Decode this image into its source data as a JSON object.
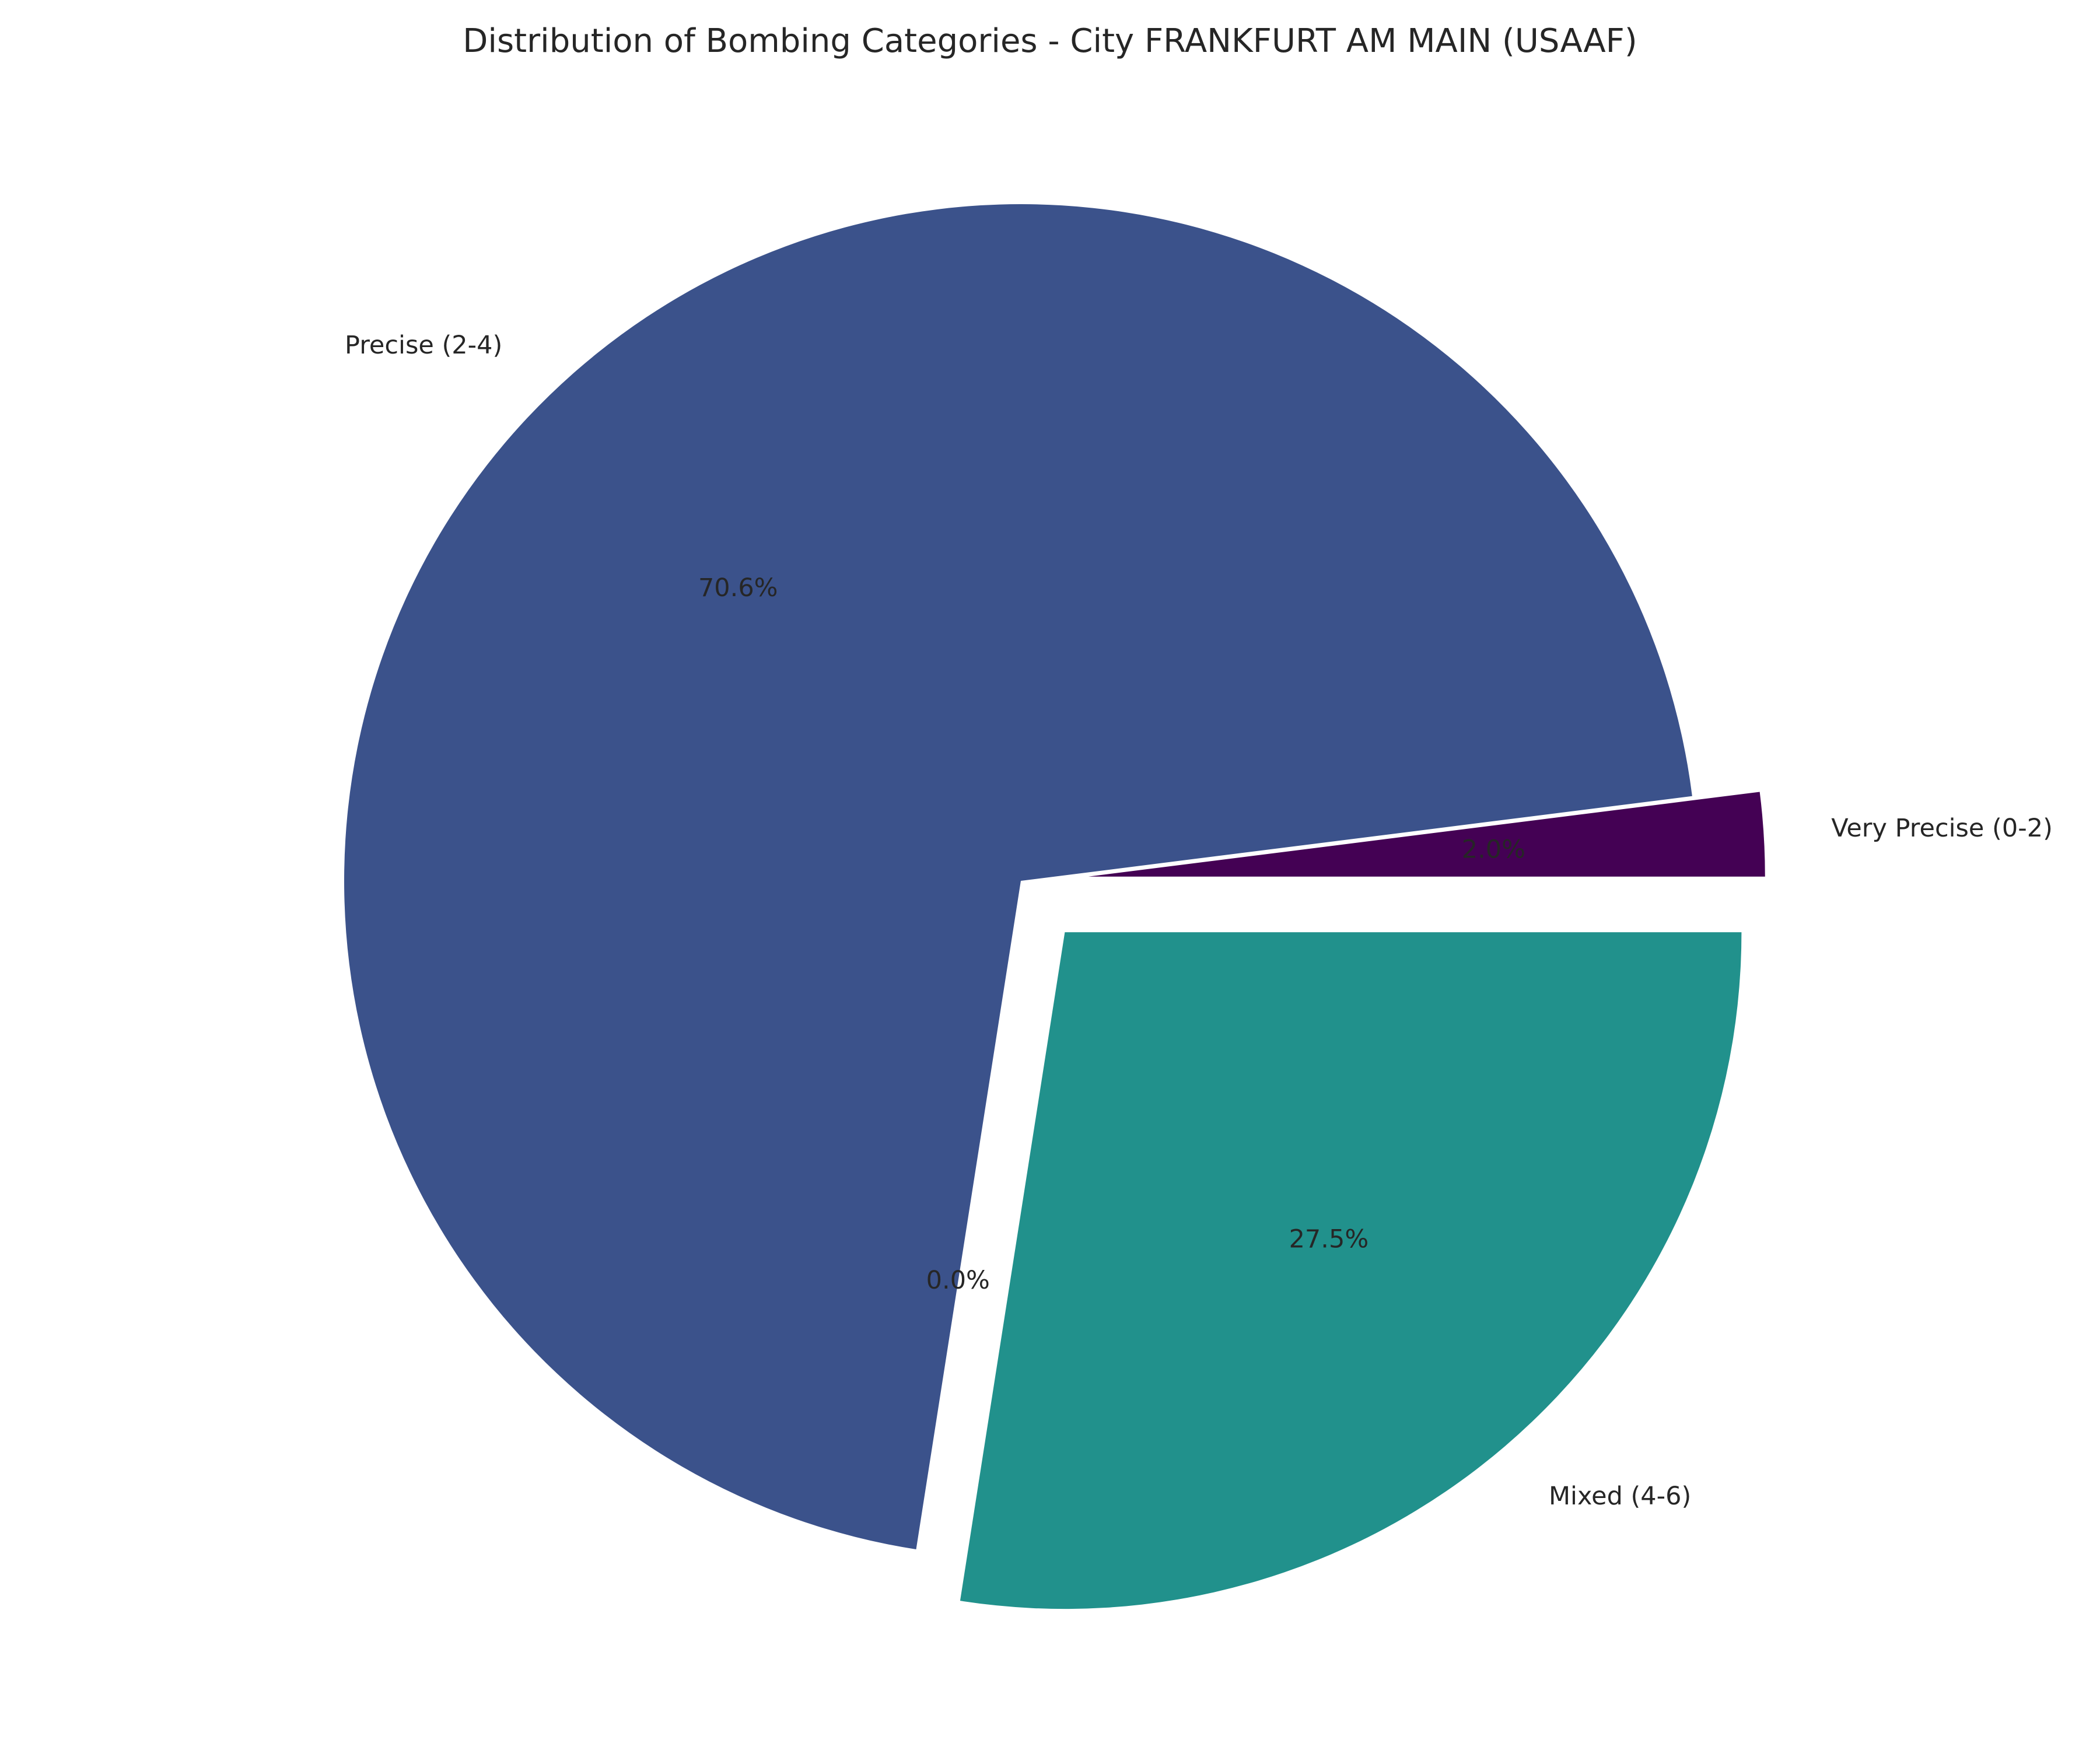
{
  "chart_data": {
    "type": "pie",
    "title": "Distribution of Bombing Categories - City FRANKFURT AM MAIN (USAAF)",
    "slices": [
      {
        "label": "Very Precise (0-2)",
        "value": 2.0,
        "pct_text": "2.0%",
        "color": "#440154",
        "explode": 0.1
      },
      {
        "label": "Precise (2-4)",
        "value": 70.6,
        "pct_text": "70.6%",
        "color": "#3b528b",
        "explode": 0
      },
      {
        "label": "",
        "value": 0.0,
        "pct_text": "0.0%",
        "color": "#5ec962",
        "explode": 0
      },
      {
        "label": "Mixed (4-6)",
        "value": 27.5,
        "pct_text": "27.5%",
        "color": "#21918c",
        "explode": 0.1
      }
    ],
    "start_angle_deg": 0,
    "direction": "counterclockwise",
    "legend": "none"
  }
}
